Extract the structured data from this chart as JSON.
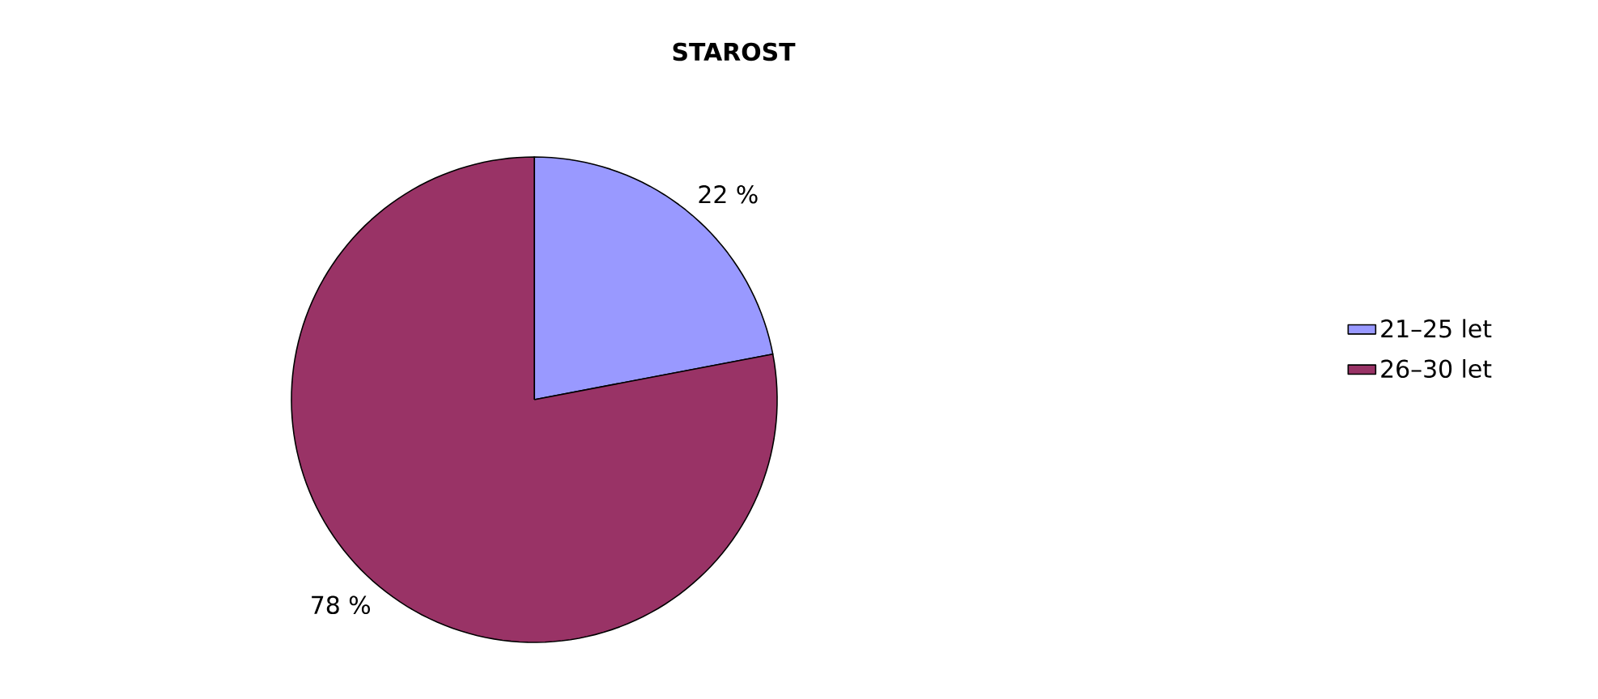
{
  "chart_data": {
    "type": "pie",
    "title": "STAROST",
    "categories": [
      "21–25 let",
      "26–30 let"
    ],
    "values": [
      22,
      78
    ],
    "value_labels": [
      "22 %",
      "78 %"
    ],
    "colors": [
      "#9999ff",
      "#993366"
    ],
    "legend": "right"
  }
}
